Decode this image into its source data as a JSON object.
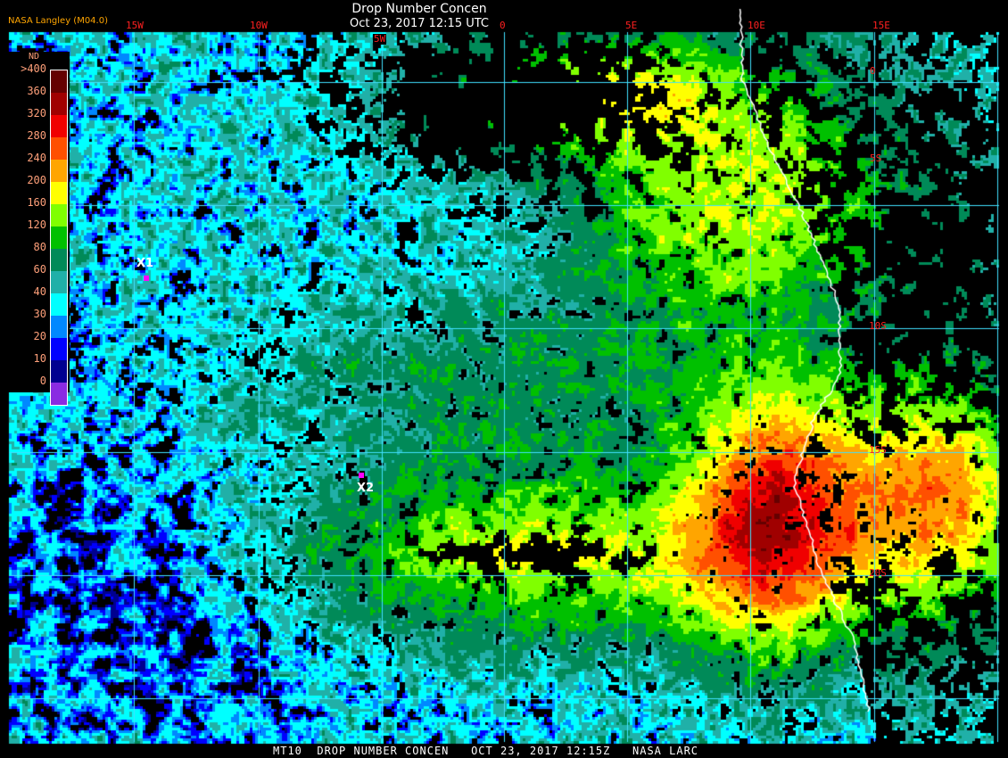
{
  "header": {
    "title": "Drop Number Concen",
    "datetime": "Oct 23, 2017 12:15 UTC",
    "provider": "NASA Langley (M04.0)"
  },
  "legend": {
    "unit": "ND",
    "labels": [
      ">400",
      "360",
      "320",
      "280",
      "240",
      "200",
      "160",
      "120",
      "80",
      "60",
      "40",
      "30",
      "20",
      "10",
      "0"
    ],
    "colors": [
      "#650000",
      "#a00000",
      "#f00000",
      "#ff5000",
      "#ffa500",
      "#ffff00",
      "#80ff00",
      "#00c000",
      "#008a58",
      "#20b0a8",
      "#00ffff",
      "#0088ff",
      "#0000ff",
      "#000090",
      "#8a2be2"
    ]
  },
  "grid": {
    "lon_labels": [
      "15W",
      "10W",
      "5W",
      "0",
      "5E",
      "10E",
      "15E"
    ],
    "lat_labels": [
      "0",
      "5S",
      "10S",
      "15S",
      "20S"
    ],
    "grid_color": "#40e0ff",
    "coastline_color": "#ffffff"
  },
  "markers": [
    {
      "label": "X1",
      "color": "#ff00ff"
    },
    {
      "label": "X2",
      "color": "#ff00ff"
    }
  ],
  "footer": "MT10  DROP NUMBER CONCEN   OCT 23, 2017 12:15Z   NASA LARC"
}
